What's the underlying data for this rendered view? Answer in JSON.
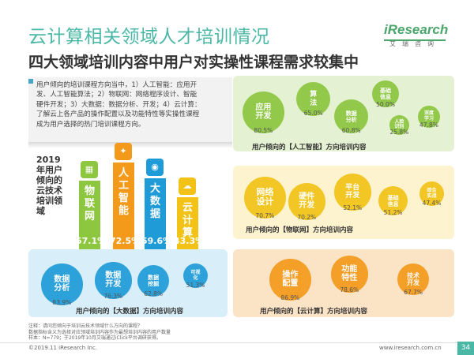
{
  "header": {
    "title": "云计算相关领域人才培训情况",
    "subtitle": "四大领域培训内容中用户对实操性课程需求较集中",
    "logo_text": "iResearch",
    "logo_cn": "艾瑞咨询"
  },
  "intro": {
    "lines": [
      "用户倾向的培训课程方向当中，1）人工智能：应用开",
      "发、人工智能算法；2）物联网：网络程序设计、智能",
      "硬件开发；3）大数据：数据分析、开发；4）云计算：",
      "了解云上各产品的操作配置以及功能特性等实操性课程",
      "成为用户选择的热门培训课程方向。"
    ]
  },
  "year_label": "2019年用户倾向的云技术培训领域",
  "bars": [
    {
      "label": "物联网",
      "value": "57.1%",
      "color": "#8dc63f",
      "icon": "chip-icon",
      "glyph": "▦"
    },
    {
      "label": "人工智能",
      "value": "72.5%",
      "color": "#f39a1b",
      "icon": "lightbulb-icon",
      "glyph": "✦"
    },
    {
      "label": "大数据",
      "value": "59.6%",
      "color": "#1f9bd7",
      "icon": "head-icon",
      "glyph": "◉"
    },
    {
      "label": "云计算",
      "value": "43.3%",
      "color": "#f2c316",
      "icon": "cloud-icon",
      "glyph": "☁"
    }
  ],
  "panels": {
    "ai": {
      "title": "用户倾向的【人工智能】方向培训内容",
      "bg": "#e4f1d2",
      "bubbles": [
        {
          "label": "应用开发",
          "value": "80.5%",
          "color": "#8dc63f"
        },
        {
          "label": "算法",
          "value": "65.0%",
          "color": "#8dc63f"
        },
        {
          "label": "数据分析",
          "value": "60.8%",
          "color": "#8dc63f"
        },
        {
          "label": "基础信息",
          "value": "50.0%",
          "color": "#8dc63f"
        },
        {
          "label": "深度学习",
          "value": "47.8%",
          "color": "#8dc63f"
        },
        {
          "label": "人脸识别",
          "value": "25.8%",
          "color": "#8dc63f"
        }
      ]
    },
    "iot": {
      "title": "用户倾向的【物联网】方向培训内容",
      "bg": "#fdf3cf",
      "bubbles": [
        {
          "label": "网络设计",
          "value": "70.7%",
          "color": "#f2c316"
        },
        {
          "label": "硬件开发",
          "value": "70.2%",
          "color": "#f2c316"
        },
        {
          "label": "平台开发",
          "value": "52.1%",
          "color": "#f2c316"
        },
        {
          "label": "基础信息",
          "value": "51.2%",
          "color": "#f2c316"
        },
        {
          "label": "综合实战",
          "value": "47.4%",
          "color": "#f2c316"
        }
      ]
    },
    "bigdata": {
      "title": "用户倾向的【大数据】方向培训内容",
      "bg": "#d8eef8",
      "bubbles": [
        {
          "label": "数据分析",
          "value": "83.9%",
          "color": "#1f9bd7"
        },
        {
          "label": "数据开发",
          "value": "76.3%",
          "color": "#1f9bd7"
        },
        {
          "label": "数据挖掘",
          "value": "62.8%",
          "color": "#1f9bd7"
        },
        {
          "label": "可视化",
          "value": "51.3%",
          "color": "#1f9bd7"
        }
      ]
    },
    "cloud": {
      "title": "用户倾向的【云计算】方向培训内容",
      "bg": "#fbe3c6",
      "bubbles": [
        {
          "label": "操作配置",
          "value": "86.9%",
          "color": "#f39a1b"
        },
        {
          "label": "功能特性",
          "value": "78.6%",
          "color": "#f39a1b"
        },
        {
          "label": "技术开发",
          "value": "67.7%",
          "color": "#f39a1b"
        }
      ]
    }
  },
  "footer": {
    "note_1": "注释：请问您倾向于培训云技术领域什么方向的课程？",
    "note_2": "数据指标含义为选择对应领域培训内容作为最想培训内容的用户数量",
    "note_3": "样本：N=779；于2019年10月艾瑞通过iClick平台调研获得。",
    "copyright": "©2019.11 iResearch Inc.",
    "website": "www.iresearch.com.cn",
    "page": "34"
  }
}
